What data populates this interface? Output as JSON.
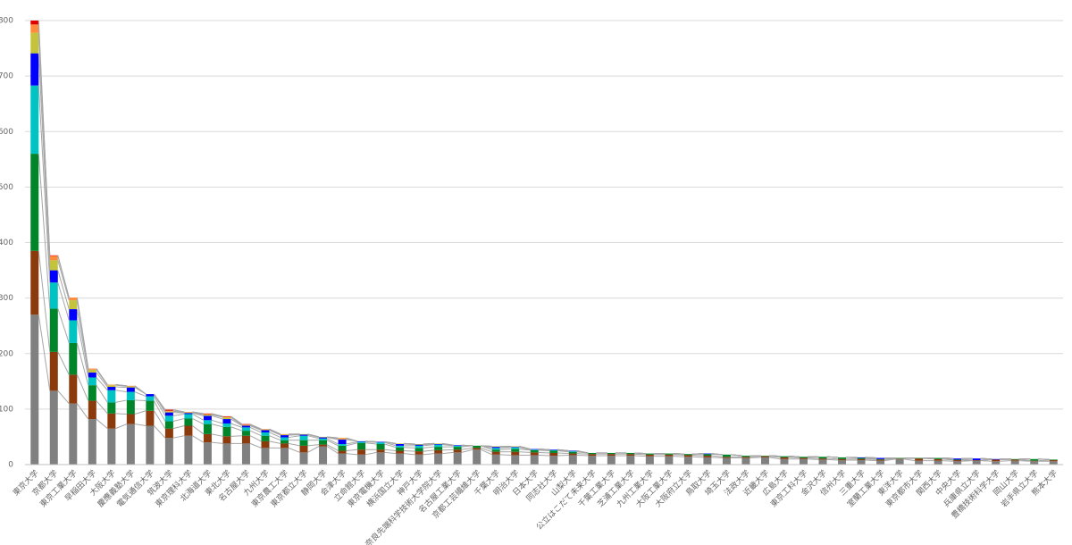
{
  "chart_data": {
    "type": "stacked_bar",
    "categories": [
      "東京大学",
      "京都大学",
      "東京工業大学",
      "早稲田大学",
      "大阪大学",
      "慶應義塾大学",
      "電気通信大学",
      "筑波大学",
      "東京理科大学",
      "北海道大学",
      "東北大学",
      "名古屋大学",
      "九州大学",
      "東京農工大学",
      "東京都立大学",
      "静岡大学",
      "会津大学",
      "立命館大学",
      "東京電機大学",
      "横浜国立大学",
      "神戸大学",
      "奈良先端科学技術大学院大学",
      "名古屋工業大学",
      "京都工芸繊維大学",
      "千葉大学",
      "明治大学",
      "日本大学",
      "同志社大学",
      "山梨大学",
      "公立はこだて未来大学",
      "千葉工業大学",
      "芝浦工業大学",
      "九州工業大学",
      "大阪工業大学",
      "大阪府立大学",
      "鳥取大学",
      "埼玉大学",
      "法政大学",
      "近畿大学",
      "広島大学",
      "東京工科大学",
      "金沢大学",
      "信州大学",
      "三重大学",
      "室蘭工業大学",
      "東洋大学",
      "東京都市大学",
      "関西大学",
      "中央大学",
      "兵庫県立大学",
      "豊橋技術科学大学",
      "岡山大学",
      "岩手県立大学",
      "熊本大学"
    ],
    "series": [
      {
        "color": "#808080",
        "values": [
          270,
          133,
          110,
          82,
          65,
          73,
          70,
          48,
          52,
          40,
          38,
          38,
          30,
          30,
          22,
          33,
          20,
          18,
          22,
          20,
          18,
          20,
          22,
          27,
          18,
          17,
          17,
          16,
          17,
          16,
          16,
          16,
          15,
          15,
          14,
          13,
          12,
          12,
          13,
          10,
          10,
          9,
          8,
          8,
          7,
          10,
          7,
          7,
          6,
          7,
          6,
          7,
          6,
          6
        ]
      },
      {
        "color": "#8b3a0c",
        "values": [
          115,
          70,
          52,
          33,
          27,
          18,
          27,
          17,
          18,
          15,
          13,
          14,
          12,
          8,
          12,
          3,
          5,
          9,
          5,
          5,
          6,
          6,
          5,
          3,
          5,
          6,
          5,
          5,
          3,
          3,
          3,
          3,
          3,
          3,
          3,
          3,
          2,
          2,
          2,
          3,
          2,
          2,
          2,
          2,
          2,
          1,
          4,
          3,
          2,
          1,
          3,
          2,
          1,
          2
        ]
      },
      {
        "color": "#00852a",
        "values": [
          175,
          78,
          57,
          28,
          20,
          25,
          18,
          13,
          13,
          18,
          17,
          9,
          10,
          6,
          10,
          8,
          9,
          12,
          10,
          6,
          6,
          6,
          5,
          4,
          4,
          5,
          4,
          4,
          3,
          2,
          2,
          2,
          2,
          2,
          2,
          3,
          4,
          2,
          1,
          2,
          2,
          3,
          3,
          2,
          1,
          1,
          1,
          2,
          1,
          0,
          0,
          1,
          3,
          1
        ]
      },
      {
        "color": "#00c4c4",
        "values": [
          123,
          47,
          41,
          14,
          22,
          15,
          8,
          10,
          8,
          7,
          6,
          6,
          6,
          5,
          8,
          3,
          3,
          2,
          3,
          3,
          4,
          4,
          2,
          0,
          3,
          3,
          1,
          1,
          1,
          0,
          0,
          0,
          0,
          0,
          0,
          0,
          0,
          0,
          0,
          0,
          0,
          0,
          0,
          0,
          0,
          0,
          0,
          0,
          0,
          0,
          0,
          0,
          0,
          0
        ]
      },
      {
        "color": "#0000ff",
        "values": [
          58,
          22,
          20,
          9,
          6,
          8,
          4,
          6,
          2,
          8,
          8,
          3,
          4,
          4,
          2,
          2,
          8,
          1,
          1,
          3,
          2,
          1,
          1,
          0,
          2,
          1,
          1,
          1,
          1,
          0,
          0,
          0,
          0,
          0,
          0,
          1,
          0,
          0,
          0,
          0,
          0,
          0,
          0,
          1,
          2,
          0,
          0,
          0,
          2,
          3,
          1,
          0,
          0,
          0
        ]
      },
      {
        "color": "#c4c43c",
        "values": [
          37,
          18,
          16,
          5,
          3,
          2,
          0,
          2,
          1,
          2,
          3,
          1,
          1,
          1,
          1,
          1,
          1,
          0,
          0,
          1,
          1,
          1,
          0,
          0,
          1,
          1,
          0,
          0,
          0,
          0,
          0,
          0,
          0,
          0,
          0,
          0,
          0,
          0,
          0,
          0,
          0,
          0,
          0,
          0,
          0,
          0,
          0,
          0,
          0,
          0,
          0,
          0,
          0,
          0
        ]
      },
      {
        "color": "#ff8c3c",
        "values": [
          15,
          8,
          5,
          2,
          1,
          1,
          0,
          1,
          1,
          1,
          1,
          1,
          1,
          1,
          0,
          0,
          2,
          0,
          0,
          0,
          0,
          0,
          0,
          0,
          0,
          0,
          0,
          0,
          0,
          0,
          0,
          0,
          0,
          0,
          0,
          0,
          0,
          0,
          0,
          0,
          0,
          0,
          0,
          0,
          0,
          0,
          0,
          0,
          0,
          0,
          0,
          0,
          0,
          0
        ]
      },
      {
        "color": "#e00000",
        "values": [
          7,
          1,
          0,
          0,
          0,
          0,
          0,
          2,
          0,
          1,
          1,
          1,
          0,
          0,
          0,
          0,
          0,
          0,
          0,
          0,
          0,
          0,
          0,
          0,
          0,
          0,
          0,
          0,
          0,
          0,
          0,
          0,
          0,
          0,
          0,
          0,
          0,
          0,
          0,
          0,
          0,
          0,
          0,
          0,
          0,
          0,
          0,
          0,
          0,
          0,
          0,
          0,
          0,
          0
        ]
      }
    ],
    "ylim": [
      0,
      800
    ],
    "yticks": [
      0,
      100,
      200,
      300,
      400,
      500,
      600,
      700,
      800
    ],
    "grid": true
  }
}
